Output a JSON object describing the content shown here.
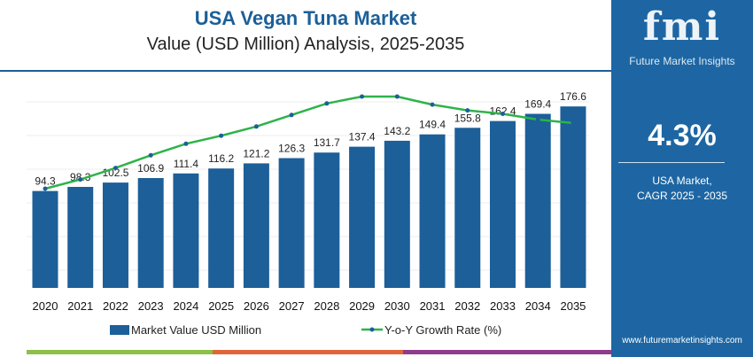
{
  "header": {
    "title": "USA Vegan Tuna Market",
    "subtitle": "Value (USD Million) Analysis, 2025-2035"
  },
  "panel": {
    "logo": "fmi",
    "logo_sub": "Future Market Insights",
    "cagr": "4.3%",
    "label1": "USA Market,",
    "label2": "CAGR 2025 - 2035",
    "url": "www.futuremarketinsights.com",
    "bg": "#1d66a3"
  },
  "chart_data": {
    "type": "bar",
    "categories": [
      "2020",
      "2021",
      "2022",
      "2023",
      "2024",
      "2025",
      "2026",
      "2027",
      "2028",
      "2029",
      "2030",
      "2031",
      "2032",
      "2033",
      "2034",
      "2035"
    ],
    "series": [
      {
        "name": "Market Value USD Million",
        "type": "bar",
        "color": "#1c5f99",
        "values": [
          94.3,
          98.3,
          102.5,
          106.9,
          111.4,
          116.2,
          121.2,
          126.3,
          131.7,
          137.4,
          143.2,
          149.4,
          155.8,
          162.4,
          169.4,
          176.6
        ],
        "labels": [
          "94.3",
          "98.3",
          "102.5",
          "106.9",
          "111.4",
          "116.2",
          "121.2",
          "126.3",
          "131.7",
          "137.4",
          "143.2",
          "149.4",
          "155.8",
          "162.4",
          "169.4",
          "176.6"
        ]
      },
      {
        "name": "Y-o-Y Growth Rate (%)",
        "type": "line",
        "color": "#2db34a",
        "values": [
          4.0,
          4.08,
          4.18,
          4.29,
          4.39,
          4.46,
          4.54,
          4.64,
          4.74,
          4.8,
          4.8,
          4.73,
          4.68,
          4.65,
          4.6,
          4.57
        ]
      }
    ],
    "legend": "bottom",
    "grid": true
  }
}
